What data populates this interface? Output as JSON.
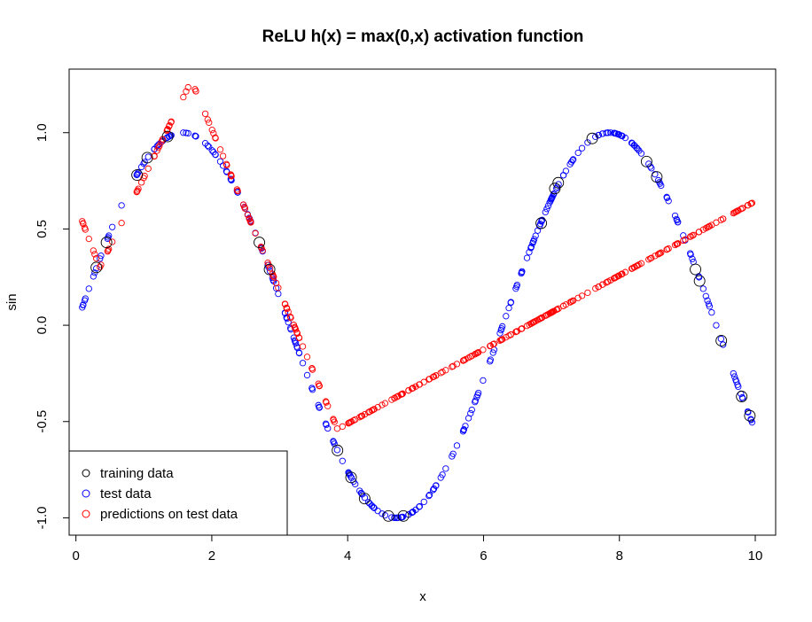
{
  "chart_data": {
    "type": "scatter",
    "title": "ReLU h(x) = max(0,x) activation function",
    "xlabel": "x",
    "ylabel": "sin",
    "xlim": [
      -0.1,
      10.3
    ],
    "ylim": [
      -1.09,
      1.33
    ],
    "x_ticks": [
      0,
      2,
      4,
      6,
      8,
      10
    ],
    "y_ticks": [
      -1.0,
      -0.5,
      0.0,
      0.5,
      1.0
    ],
    "x_tick_labels": [
      "0",
      "2",
      "4",
      "6",
      "8",
      "10"
    ],
    "y_tick_labels": [
      "-1.0",
      "-0.5",
      "0.0",
      "0.5",
      "1.0"
    ],
    "grid": false,
    "legend_position": "bottom-left",
    "legend": [
      {
        "label": "training data",
        "color": "#000000"
      },
      {
        "label": "test data",
        "color": "#0000ff"
      },
      {
        "label": "predictions on test data",
        "color": "#ff0000"
      }
    ],
    "series": [
      {
        "name": "training data",
        "color": "#000000",
        "marker": "open-circle-large",
        "x": [
          0.3,
          0.45,
          0.9,
          1.05,
          1.35,
          2.7,
          2.85,
          3.85,
          4.05,
          4.25,
          4.6,
          4.82,
          6.85,
          7.05,
          7.1,
          7.6,
          8.4,
          8.55,
          9.12,
          9.18,
          9.5,
          9.8,
          9.92
        ],
        "y": [
          0.3,
          0.43,
          0.78,
          0.87,
          0.98,
          0.43,
          0.29,
          -0.65,
          -0.79,
          -0.9,
          -0.99,
          -0.99,
          0.53,
          0.71,
          0.74,
          0.97,
          0.85,
          0.77,
          0.29,
          0.23,
          -0.08,
          -0.37,
          -0.47
        ]
      },
      {
        "name": "test data",
        "color": "#0000ff",
        "marker": "open-circle",
        "function": "sin(x)",
        "x_range": [
          0.05,
          9.98
        ]
      },
      {
        "name": "predictions on test data",
        "color": "#ff0000",
        "marker": "open-circle",
        "segments": [
          {
            "x": [
              0.05,
              0.35
            ],
            "y": [
              0.58,
              0.3
            ]
          },
          {
            "x": [
              0.35,
              1.7
            ],
            "y": [
              0.3,
              1.27
            ]
          },
          {
            "x": [
              1.7,
              3.85
            ],
            "y": [
              1.27,
              -0.54
            ]
          },
          {
            "x": [
              3.85,
              9.98
            ],
            "y": [
              -0.54,
              0.64
            ]
          }
        ]
      }
    ]
  }
}
